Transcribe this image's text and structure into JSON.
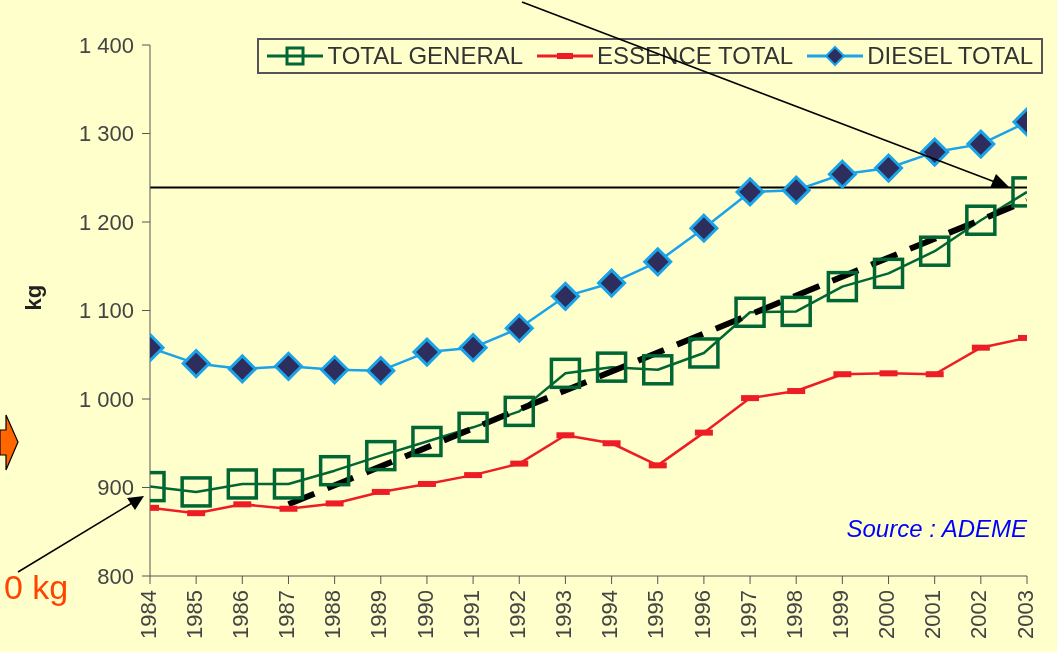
{
  "chart_data": {
    "type": "line",
    "ylabel": "kg",
    "x": [
      1984,
      1985,
      1986,
      1987,
      1988,
      1989,
      1990,
      1991,
      1992,
      1993,
      1994,
      1995,
      1996,
      1997,
      1998,
      1999,
      2000,
      2001,
      2002,
      2003
    ],
    "xlim": [
      1984,
      2003
    ],
    "xticks": [
      1984,
      1985,
      1986,
      1987,
      1988,
      1989,
      1990,
      1991,
      1992,
      1993,
      1994,
      1995,
      1996,
      1997,
      1998,
      1999,
      2000,
      2001,
      2002,
      2003
    ],
    "ylim": [
      800,
      1400
    ],
    "yticks": [
      {
        "value": 800,
        "label": "800"
      },
      {
        "value": 900,
        "label": "900"
      },
      {
        "value": 1000,
        "label": "1 000"
      },
      {
        "value": 1100,
        "label": "1 100"
      },
      {
        "value": 1200,
        "label": "1 200"
      },
      {
        "value": 1300,
        "label": "1 300"
      },
      {
        "value": 1400,
        "label": "1 400"
      }
    ],
    "series": [
      {
        "name": "TOTAL GENERAL",
        "color": "#006633",
        "marker": "square",
        "values": [
          901,
          895,
          904,
          904,
          919,
          936,
          952,
          968,
          986,
          1029,
          1036,
          1033,
          1052,
          1098,
          1099,
          1127,
          1142,
          1167,
          1202,
          1234
        ]
      },
      {
        "name": "ESSENCE TOTAL",
        "color": "#ee1c25",
        "marker": "square",
        "values": [
          877,
          871,
          881,
          876,
          882,
          895,
          904,
          914,
          927,
          959,
          950,
          925,
          962,
          1001,
          1009,
          1028,
          1029,
          1028,
          1058,
          1069
        ]
      },
      {
        "name": "DIESEL TOTAL",
        "color": "#1aa3e8",
        "marker": "diamond",
        "values": [
          1058,
          1040,
          1034,
          1037,
          1033,
          1032,
          1053,
          1058,
          1080,
          1116,
          1131,
          1155,
          1193,
          1234,
          1236,
          1254,
          1261,
          1279,
          1288,
          1313
        ]
      },
      {
        "type": "line",
        "x": [
          1987,
          2003
        ],
        "values": [
          881,
          1224
        ],
        "color": "#000000",
        "line_style": "dashed",
        "marker": "none"
      }
    ],
    "ref_lines": [
      {
        "axis": "y",
        "value": 1239,
        "color": "#000000"
      }
    ],
    "annotations": [
      "Source : ADEME",
      "0 kg"
    ],
    "legend": "top right",
    "grid": false
  }
}
